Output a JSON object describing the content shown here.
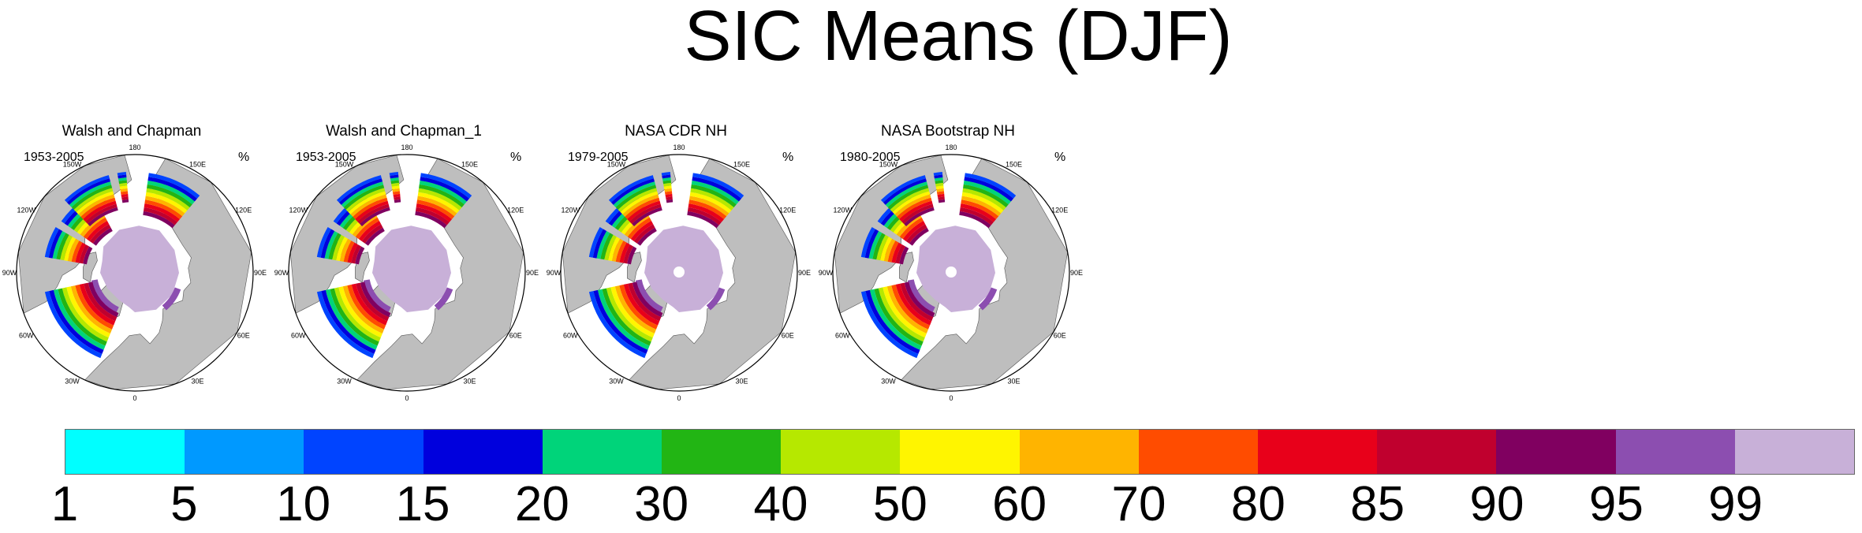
{
  "title": "SIC Means (DJF)",
  "chart_data": {
    "type": "heatmap",
    "title": "SIC Means (DJF)",
    "projection": "north polar stereographic",
    "variable_unit": "%",
    "panels": [
      {
        "name": "Walsh and Chapman",
        "period": "1953-2005",
        "unit": "%"
      },
      {
        "name": "Walsh and Chapman_1",
        "period": "1953-2005",
        "unit": "%"
      },
      {
        "name": "NASA CDR NH",
        "period": "1979-2005",
        "unit": "%"
      },
      {
        "name": "NASA Bootstrap NH",
        "period": "1980-2005",
        "unit": "%"
      }
    ],
    "longitude_labels": [
      "180",
      "150E",
      "120E",
      "90E",
      "60E",
      "30E",
      "0",
      "30W",
      "60W",
      "90W",
      "120W",
      "150W"
    ],
    "colorbar": {
      "levels": [
        "1",
        "5",
        "10",
        "15",
        "20",
        "30",
        "40",
        "50",
        "60",
        "70",
        "80",
        "85",
        "90",
        "95",
        "99"
      ],
      "colors": [
        "#00ffff",
        "#0099ff",
        "#0044ff",
        "#0000dd",
        "#00d47a",
        "#22b514",
        "#b6e800",
        "#fff500",
        "#ffb400",
        "#ff4c00",
        "#e8001a",
        "#c0002e",
        "#800060",
        "#8c4eb0",
        "#c8b0d8"
      ]
    },
    "land_color": "#bebebe",
    "ocean_color": "#ffffff"
  }
}
